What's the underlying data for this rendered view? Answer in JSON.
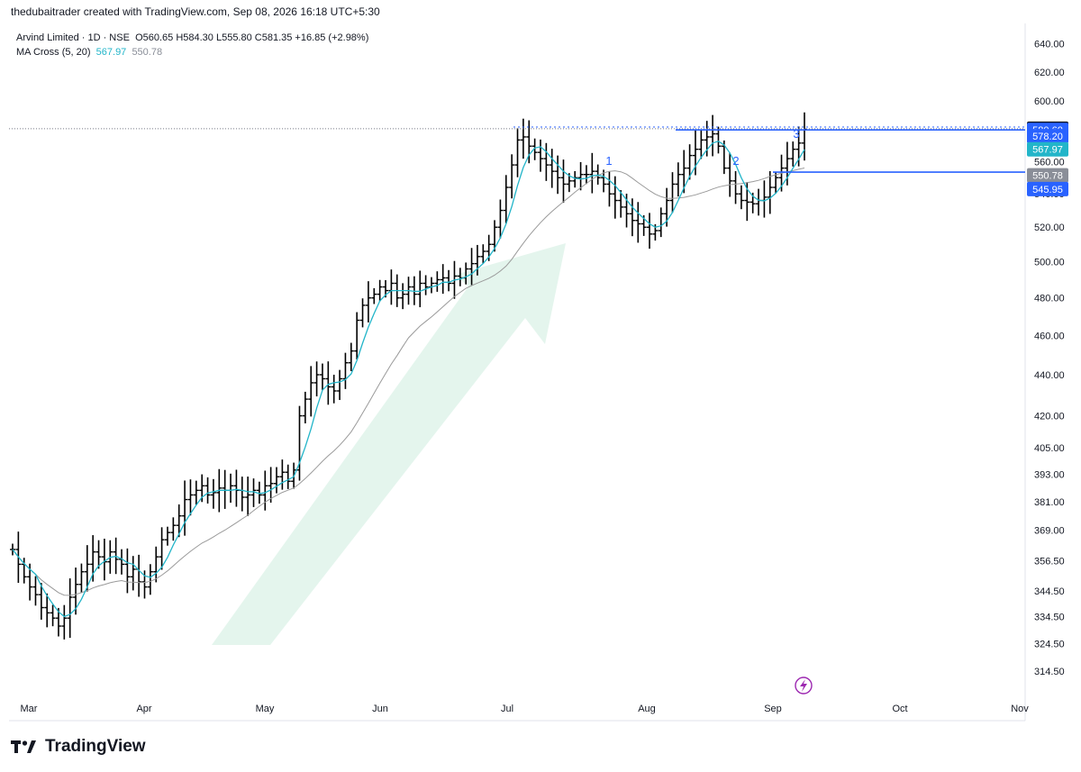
{
  "header": {
    "attribution": "thedubaitrader created with TradingView.com, Sep 08, 2026 16:18 UTC+5:30"
  },
  "legend": {
    "symbol": "Arvind Limited · 1D · NSE",
    "ohlc": "O560.65  H584.30  L555.80  C581.35  +16.85 (+2.98%)",
    "ma_name": "MA Cross (5, 20)",
    "ma_fast": "567.97",
    "ma_slow": "550.78"
  },
  "brand": {
    "name": "TradingView"
  },
  "chart_data": {
    "type": "ohlc-bar",
    "scale": "log",
    "ylim": [
      306,
      655
    ],
    "y_ticks": [
      "640.00",
      "620.00",
      "600.00",
      "580.60",
      "560.00",
      "540.00",
      "520.00",
      "500.00",
      "480.00",
      "460.00",
      "440.00",
      "420.00",
      "405.00",
      "393.00",
      "381.00",
      "369.00",
      "356.50",
      "344.50",
      "334.50",
      "324.50",
      "314.50"
    ],
    "x_labels": [
      "Mar",
      "Apr",
      "May",
      "Jun",
      "Jul",
      "Aug",
      "Sep",
      "Oct",
      "Nov"
    ],
    "price_tags": [
      {
        "label": "581.35",
        "value": 581.35,
        "bg": "#131722"
      },
      {
        "label": "580.60",
        "value": 580.6,
        "bg": "#2962ff"
      },
      {
        "label": "578.20",
        "value": 576.5,
        "bg": "#2962ff"
      },
      {
        "label": "567.97",
        "value": 567.97,
        "bg": "#22b5c9"
      },
      {
        "label": "550.78",
        "value": 551.5,
        "bg": "#8a8e98"
      },
      {
        "label": "545.95",
        "value": 543.0,
        "bg": "#2962ff"
      }
    ],
    "horizontal_levels": [
      580.6,
      553.5
    ],
    "wave_labels": [
      "1",
      "2",
      "3"
    ],
    "colors": {
      "bars": "#000000",
      "ma_fast": "#22b5c9",
      "ma_slow": "#9a9a9a",
      "levels": "#2962ff",
      "arrow": "#dff3ea",
      "alert": "#9c27b0"
    },
    "closes": [
      361,
      355,
      350,
      346,
      343,
      338,
      336,
      334,
      331,
      334,
      342,
      347,
      352,
      355,
      360,
      358,
      356,
      360,
      357,
      355,
      350,
      353,
      348,
      346,
      352,
      358,
      365,
      368,
      371,
      375,
      382,
      384,
      386,
      388,
      384,
      385,
      387,
      386,
      388,
      386,
      383,
      384,
      386,
      384,
      388,
      389,
      392,
      394,
      390,
      395,
      420,
      428,
      436,
      440,
      438,
      434,
      432,
      438,
      446,
      452,
      468,
      476,
      480,
      482,
      486,
      484,
      488,
      480,
      482,
      486,
      482,
      488,
      486,
      488,
      490,
      491,
      488,
      492,
      491,
      496,
      499,
      503,
      506,
      510,
      520,
      530,
      544,
      558,
      574,
      576,
      570,
      566,
      562,
      558,
      554,
      550,
      546,
      548,
      550,
      552,
      552,
      554,
      550,
      546,
      540,
      536,
      532,
      528,
      524,
      522,
      520,
      516,
      518,
      528,
      536,
      546,
      552,
      556,
      564,
      568,
      574,
      576,
      578,
      570,
      556,
      548,
      540,
      536,
      535,
      534,
      536,
      538,
      544,
      550,
      556,
      562,
      568,
      572,
      581
    ]
  }
}
